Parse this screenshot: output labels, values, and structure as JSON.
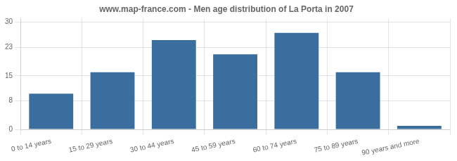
{
  "chart_data": {
    "type": "bar",
    "title": "www.map-france.com - Men age distribution of La Porta in 2007",
    "categories": [
      "0 to 14 years",
      "15 to 29 years",
      "30 to 44 years",
      "45 to 59 years",
      "60 to 74 years",
      "75 to 89 years",
      "90 years and more"
    ],
    "values": [
      10,
      16,
      25,
      21,
      27,
      16,
      1
    ],
    "color": "#3a6e9e",
    "ylim": [
      0,
      31
    ],
    "yticks": [
      0,
      8,
      15,
      23,
      30
    ],
    "grid": true
  }
}
